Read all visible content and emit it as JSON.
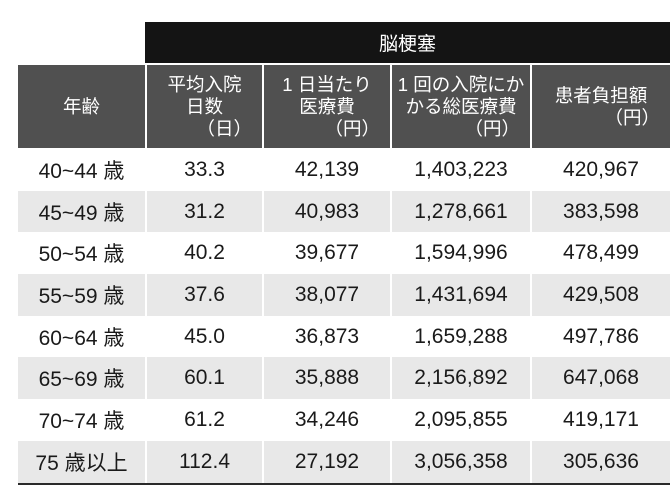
{
  "chart_data": {
    "type": "table",
    "group_header": "脳梗塞",
    "columns": [
      {
        "label_lines": [
          "年齢"
        ]
      },
      {
        "label_lines": [
          "平均入院",
          "日数"
        ],
        "unit": "（日）"
      },
      {
        "label_lines": [
          "1 日当たり",
          "医療費"
        ],
        "unit": "（円）"
      },
      {
        "label_lines": [
          "1 回の入院にか",
          "かる総医療費"
        ],
        "unit": "（円）"
      },
      {
        "label_lines": [
          "患者負担額"
        ],
        "unit": "（円）"
      }
    ],
    "rows": [
      [
        "40~44 歳",
        "33.3",
        "42,139",
        "1,403,223",
        "420,967"
      ],
      [
        "45~49 歳",
        "31.2",
        "40,983",
        "1,278,661",
        "383,598"
      ],
      [
        "50~54 歳",
        "40.2",
        "39,677",
        "1,594,996",
        "478,499"
      ],
      [
        "55~59 歳",
        "37.6",
        "38,077",
        "1,431,694",
        "429,508"
      ],
      [
        "60~64 歳",
        "45.0",
        "36,873",
        "1,659,288",
        "497,786"
      ],
      [
        "65~69 歳",
        "60.1",
        "35,888",
        "2,156,892",
        "647,068"
      ],
      [
        "70~74 歳",
        "61.2",
        "34,246",
        "2,095,855",
        "419,171"
      ],
      [
        "75 歳以上",
        "112.4",
        "27,192",
        "3,056,358",
        "305,636"
      ]
    ]
  },
  "colors": {
    "group_header_bg": "#141414",
    "column_header_bg": "#505050",
    "stripe_bg": "#e8e8e8",
    "text": "#1a1a1a"
  }
}
